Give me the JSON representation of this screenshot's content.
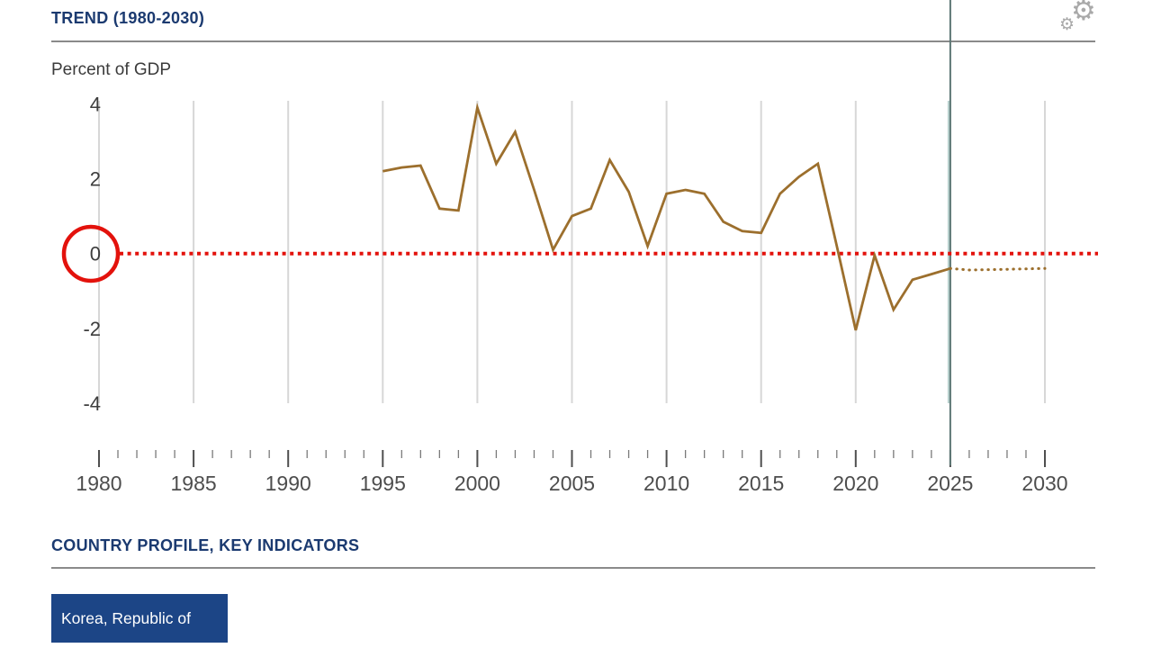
{
  "header": {
    "title": "TREND (1980-2030)"
  },
  "icons": {
    "gear": "⚙"
  },
  "chart": {
    "unit_label": "Percent of GDP"
  },
  "chart_data": {
    "type": "line",
    "title": "TREND (1980-2030)",
    "ylabel": "Percent of GDP",
    "xlim": [
      1980,
      2033
    ],
    "ylim": [
      -5,
      5
    ],
    "y_ticks": [
      4,
      2,
      0,
      -2,
      -4
    ],
    "x_ticks": [
      1980,
      1985,
      1990,
      1995,
      2000,
      2005,
      2010,
      2015,
      2020,
      2025,
      2030
    ],
    "x_minor_tick_step": 1,
    "grid": "vertical-only",
    "legend_position": "none",
    "zero_reference_line": {
      "value": 0,
      "style": "dotted",
      "color": "#e3120c"
    },
    "annotation_circle": {
      "on": "y-axis-label-0",
      "color": "#e3120c"
    },
    "projection_divider_year": 2025,
    "series": [
      {
        "name": "historical",
        "style": "solid",
        "color": "#9c6f2d",
        "x": [
          1995,
          1996,
          1997,
          1998,
          1999,
          2000,
          2001,
          2002,
          2003,
          2004,
          2005,
          2006,
          2007,
          2008,
          2009,
          2010,
          2011,
          2012,
          2013,
          2014,
          2015,
          2016,
          2017,
          2018,
          2019,
          2020,
          2021,
          2022,
          2023,
          2024,
          2025
        ],
        "values": [
          2.2,
          2.3,
          2.35,
          1.2,
          1.15,
          3.9,
          2.4,
          3.25,
          1.7,
          0.1,
          1.0,
          1.2,
          2.5,
          1.65,
          0.2,
          1.6,
          1.7,
          1.6,
          0.85,
          0.6,
          0.55,
          1.6,
          2.05,
          2.4,
          0.2,
          -2.05,
          -0.05,
          -1.5,
          -0.7,
          -0.55,
          -0.4
        ]
      },
      {
        "name": "projection",
        "style": "dotted",
        "color": "#9c6f2d",
        "x": [
          2025,
          2026,
          2027,
          2028,
          2029,
          2030
        ],
        "values": [
          -0.4,
          -0.44,
          -0.43,
          -0.42,
          -0.41,
          -0.4
        ]
      }
    ]
  },
  "profile_section": {
    "heading": "COUNTRY PROFILE, KEY INDICATORS",
    "country_button_label": "Korea, Republic of"
  },
  "colors": {
    "accent_navy": "#1b3a70",
    "button_bg": "#1c4586",
    "line_brown": "#9c6f2d",
    "reference_red": "#e3120c",
    "grid_gray": "#d7d7d7",
    "divider_dark_teal": "#5d7775",
    "divider_light_teal": "#b9d2cf",
    "axis_text": "#4d4d4d",
    "rule_gray": "#8a8a8a"
  }
}
